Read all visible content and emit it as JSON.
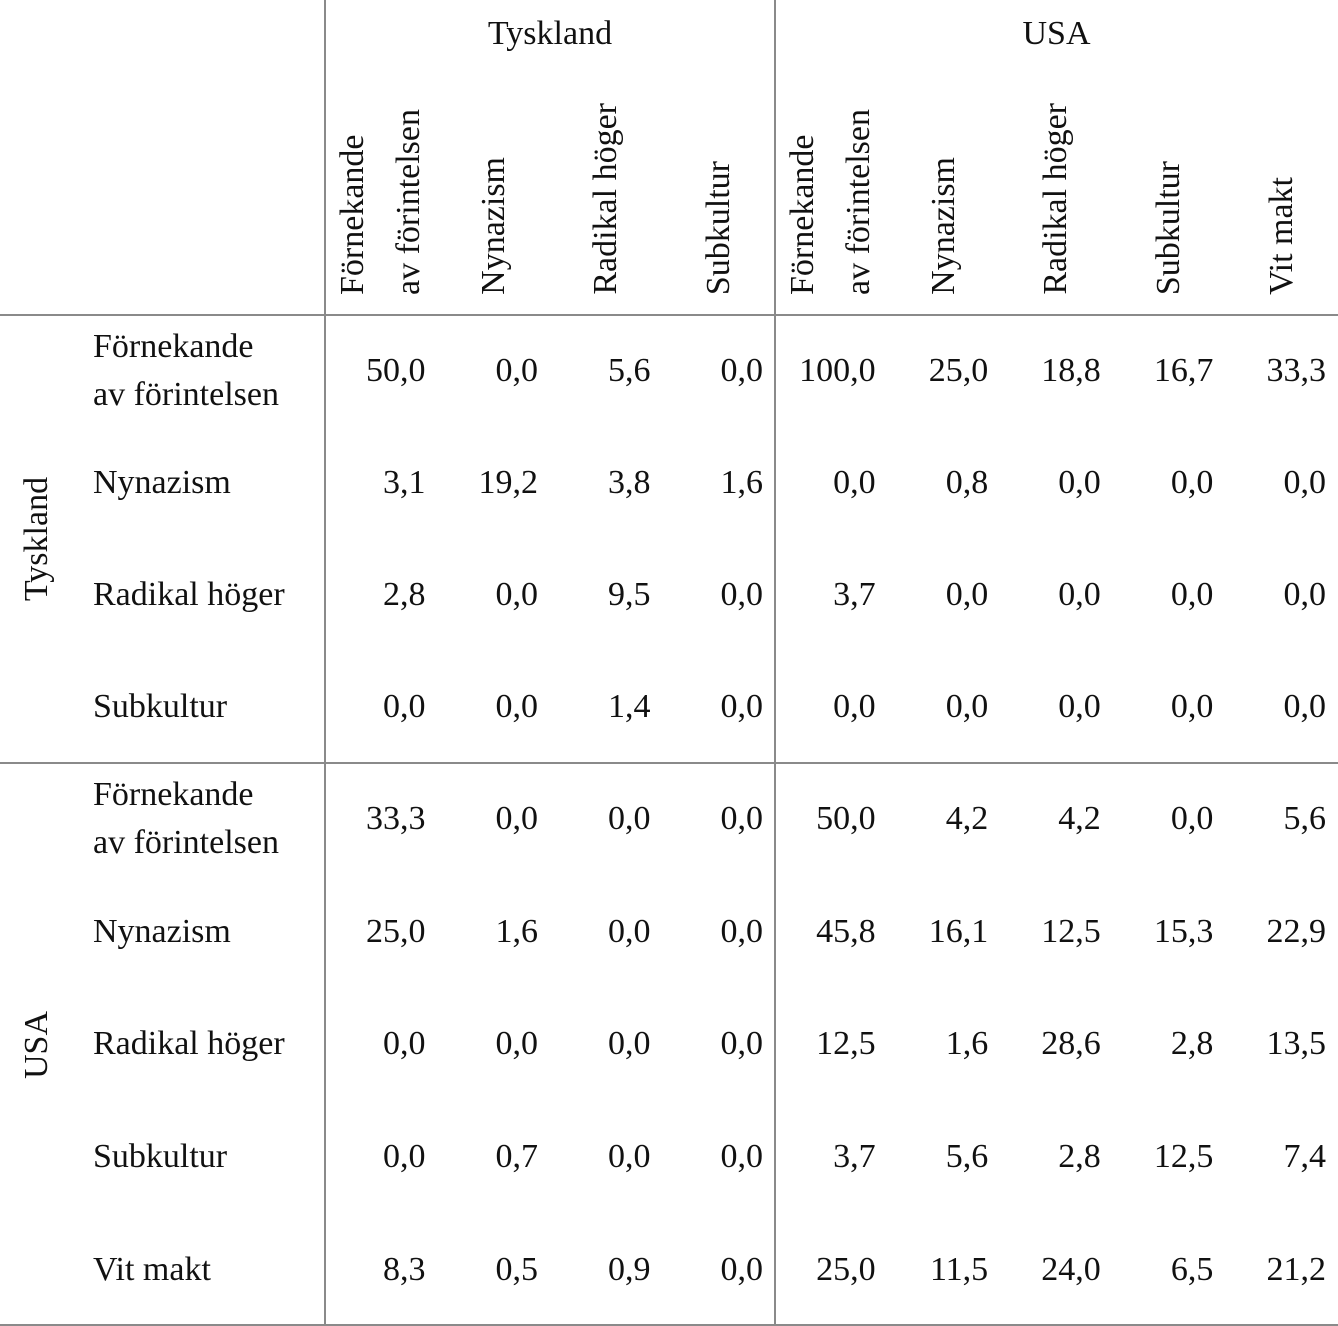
{
  "table": {
    "column_groups": [
      {
        "label": "Tyskland",
        "columns": [
          "Förnekande\nav förintelsen",
          "Nynazism",
          "Radikal höger",
          "Subkultur"
        ]
      },
      {
        "label": "USA",
        "columns": [
          "Förnekande\nav förintelsen",
          "Nynazism",
          "Radikal höger",
          "Subkultur",
          "Vit makt"
        ]
      }
    ],
    "row_groups": [
      {
        "label": "Tyskland",
        "rows": [
          {
            "label": "Förnekande\nav förintelsen",
            "cells": [
              "50,0",
              "0,0",
              "5,6",
              "0,0",
              "100,0",
              "25,0",
              "18,8",
              "16,7",
              "33,3"
            ]
          },
          {
            "label": "Nynazism",
            "cells": [
              "3,1",
              "19,2",
              "3,8",
              "1,6",
              "0,0",
              "0,8",
              "0,0",
              "0,0",
              "0,0"
            ]
          },
          {
            "label": "Radikal höger",
            "cells": [
              "2,8",
              "0,0",
              "9,5",
              "0,0",
              "3,7",
              "0,0",
              "0,0",
              "0,0",
              "0,0"
            ]
          },
          {
            "label": "Subkultur",
            "cells": [
              "0,0",
              "0,0",
              "1,4",
              "0,0",
              "0,0",
              "0,0",
              "0,0",
              "0,0",
              "0,0"
            ]
          }
        ]
      },
      {
        "label": "USA",
        "rows": [
          {
            "label": "Förnekande\nav förintelsen",
            "cells": [
              "33,3",
              "0,0",
              "0,0",
              "0,0",
              "50,0",
              "4,2",
              "4,2",
              "0,0",
              "5,6"
            ]
          },
          {
            "label": "Nynazism",
            "cells": [
              "25,0",
              "1,6",
              "0,0",
              "0,0",
              "45,8",
              "16,1",
              "12,5",
              "15,3",
              "22,9"
            ]
          },
          {
            "label": "Radikal höger",
            "cells": [
              "0,0",
              "0,0",
              "0,0",
              "0,0",
              "12,5",
              "1,6",
              "28,6",
              "2,8",
              "13,5"
            ]
          },
          {
            "label": "Subkultur",
            "cells": [
              "0,0",
              "0,7",
              "0,0",
              "0,0",
              "3,7",
              "5,6",
              "2,8",
              "12,5",
              "7,4"
            ]
          },
          {
            "label": "Vit makt",
            "cells": [
              "8,3",
              "0,5",
              "0,9",
              "0,0",
              "25,0",
              "11,5",
              "24,0",
              "6,5",
              "21,2"
            ]
          }
        ]
      }
    ]
  }
}
